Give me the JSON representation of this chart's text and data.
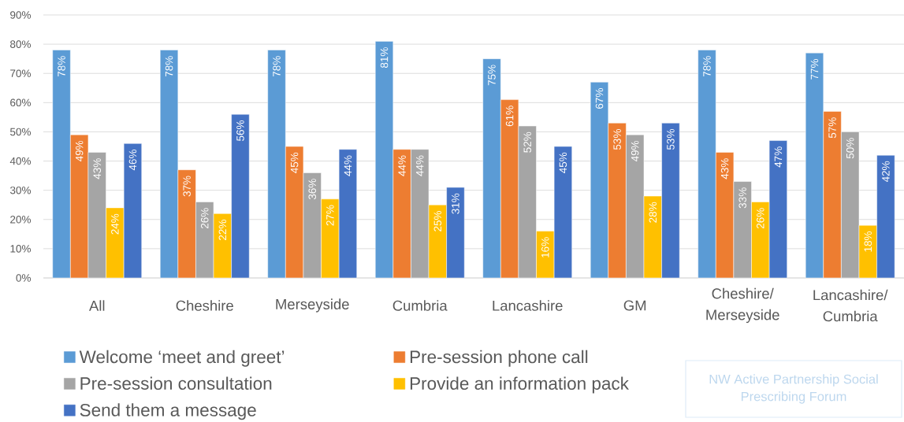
{
  "chart_data": {
    "type": "bar",
    "categories": [
      "All",
      "Cheshire",
      "Merseyside",
      "Cumbria",
      "Lancashire",
      "GM",
      "Cheshire/ Merseyside",
      "Lancashire/ Cumbria"
    ],
    "series": [
      {
        "name": "Welcome ‘meet and greet’",
        "color": "#5b9bd5",
        "values": [
          78,
          78,
          78,
          81,
          75,
          67,
          78,
          77
        ],
        "value_labels": [
          "78%",
          "78%",
          "78%",
          "81%",
          "75%",
          "67%",
          "78%",
          "77%"
        ]
      },
      {
        "name": "Pre-session phone call",
        "color": "#ed7d31",
        "values": [
          49,
          37,
          45,
          44,
          61,
          53,
          43,
          57
        ],
        "value_labels": [
          "49%",
          "37%",
          "45%",
          "44%",
          "61%",
          "53%",
          "43%",
          "57%"
        ]
      },
      {
        "name": "Pre-session consultation",
        "color": "#a5a5a5",
        "values": [
          43,
          26,
          36,
          44,
          52,
          49,
          33,
          50
        ],
        "value_labels": [
          "43%",
          "26%",
          "36%",
          "44%",
          "52%",
          "49%",
          "33%",
          "50%"
        ]
      },
      {
        "name": "Provide an information pack",
        "color": "#ffc000",
        "values": [
          24,
          22,
          27,
          25,
          16,
          28,
          26,
          18
        ],
        "value_labels": [
          "24%",
          "22%",
          "27%",
          "25%",
          "16%",
          "28%",
          "26%",
          "18%"
        ]
      },
      {
        "name": "Send them a message",
        "color": "#4472c4",
        "values": [
          46,
          56,
          44,
          31,
          45,
          53,
          47,
          42
        ],
        "value_labels": [
          "46%",
          "56%",
          "44%",
          "31%",
          "45%",
          "53%",
          "47%",
          "42%"
        ]
      }
    ],
    "ylim": [
      0,
      90
    ],
    "yticks": [
      {
        "value": 0,
        "label": "0%"
      },
      {
        "value": 10,
        "label": "10%"
      },
      {
        "value": 20,
        "label": "20%"
      },
      {
        "value": 30,
        "label": "30%"
      },
      {
        "value": 40,
        "label": "40%"
      },
      {
        "value": 50,
        "label": "50%"
      },
      {
        "value": 60,
        "label": "60%"
      },
      {
        "value": 70,
        "label": "70%"
      },
      {
        "value": 80,
        "label": "80%"
      },
      {
        "value": 90,
        "label": "90%"
      }
    ],
    "grid": "y",
    "legend": "bottom",
    "annotations": [
      "NW Active Partnership Social Prescribing Forum"
    ]
  }
}
